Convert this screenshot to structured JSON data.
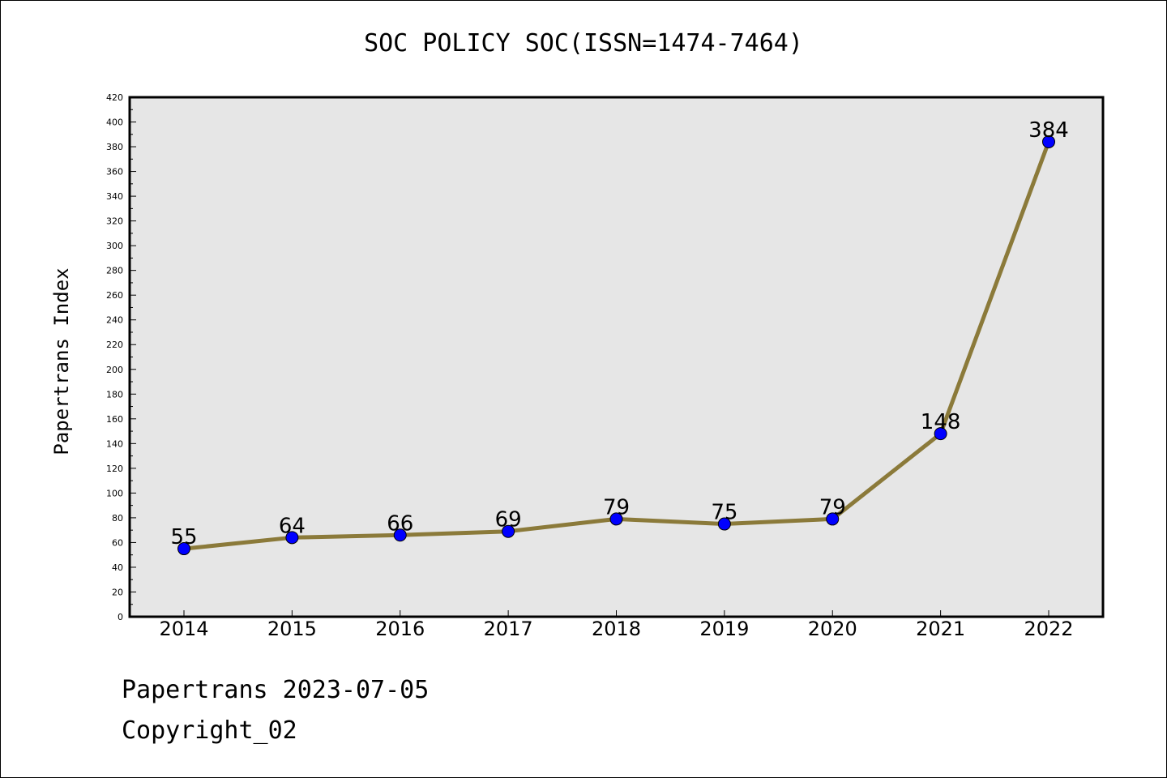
{
  "title": "SOC POLICY SOC(ISSN=1474-7464)",
  "footer": {
    "date_line": "Papertrans 2023-07-05",
    "copyright_line": "Copyright_02"
  },
  "chart_data": {
    "type": "line",
    "title": "SOC POLICY SOC(ISSN=1474-7464)",
    "xlabel": "",
    "ylabel": "Papertrans Index",
    "categories": [
      "2014",
      "2015",
      "2016",
      "2017",
      "2018",
      "2019",
      "2020",
      "2021",
      "2022"
    ],
    "series": [
      {
        "values": [
          55,
          64,
          66,
          69,
          79,
          75,
          79,
          148,
          384
        ]
      }
    ],
    "ylim": [
      0,
      420
    ],
    "ytick_step": 20,
    "grid": false,
    "data_labels": true,
    "colors": {
      "line": "#8b7a3a",
      "marker": "#0000ff",
      "plot_bg": "#e6e6e6"
    }
  }
}
